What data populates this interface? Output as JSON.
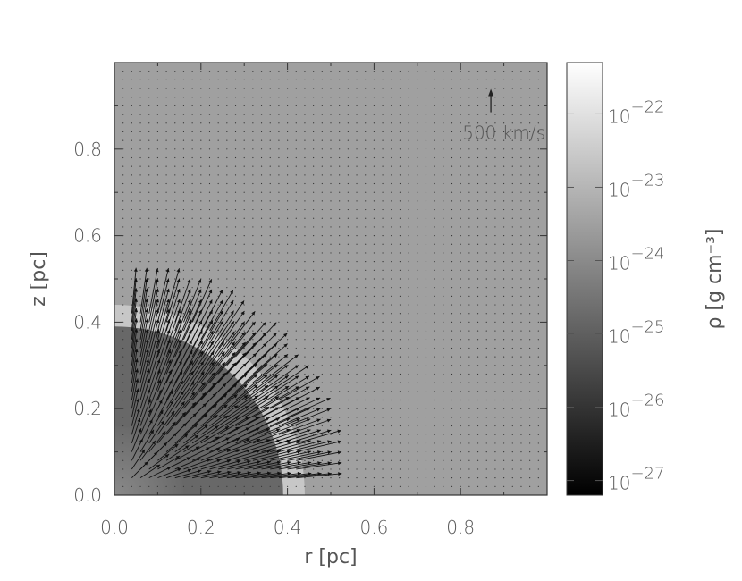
{
  "chart_data": {
    "type": "heatmap",
    "title": "",
    "xlabel": "r [pc]",
    "ylabel": "z [pc]",
    "xlim": [
      0.0,
      1.0
    ],
    "ylim": [
      0.0,
      1.0
    ],
    "x_ticks": [
      {
        "value": 0.0,
        "label": "0.0"
      },
      {
        "value": 0.2,
        "label": "0.2"
      },
      {
        "value": 0.4,
        "label": "0.4"
      },
      {
        "value": 0.6,
        "label": "0.6"
      },
      {
        "value": 0.8,
        "label": "0.8"
      }
    ],
    "y_ticks": [
      {
        "value": 0.0,
        "label": "0.0"
      },
      {
        "value": 0.2,
        "label": "0.2"
      },
      {
        "value": 0.4,
        "label": "0.4"
      },
      {
        "value": 0.6,
        "label": "0.6"
      },
      {
        "value": 0.8,
        "label": "0.8"
      }
    ],
    "colorbar": {
      "label": "ρ [g cm⁻³]",
      "scale": "log",
      "range": [
        -27.2,
        -21.3
      ],
      "colormap": "grayscale (black = low, white = high)",
      "tick_base": "10",
      "ticks": [
        {
          "exp": -22,
          "label": "−22"
        },
        {
          "exp": -23,
          "label": "−23"
        },
        {
          "exp": -24,
          "label": "−24"
        },
        {
          "exp": -25,
          "label": "−25"
        },
        {
          "exp": -26,
          "label": "−26"
        },
        {
          "exp": -27,
          "label": "−27"
        }
      ]
    },
    "ambient_log_density": -23.5,
    "regions": [
      {
        "name": "outer shell",
        "r_inner": 0.39,
        "r_outer": 0.44,
        "log_density": -22.6
      },
      {
        "name": "swept-up region",
        "r_inner": 0.16,
        "r_outer": 0.39,
        "log_density": -24.8
      },
      {
        "name": "inner core",
        "r_inner": 0.0,
        "r_outer": 0.16,
        "log_density": -25.2
      }
    ],
    "velocity_key": {
      "label": "500 km/s",
      "speed": 500,
      "x": 0.87,
      "y": 0.91
    },
    "velocity_field": {
      "grid_spacing": 0.02,
      "expanding_within_radius": 0.44,
      "max_speed_km_s": 1100
    }
  }
}
